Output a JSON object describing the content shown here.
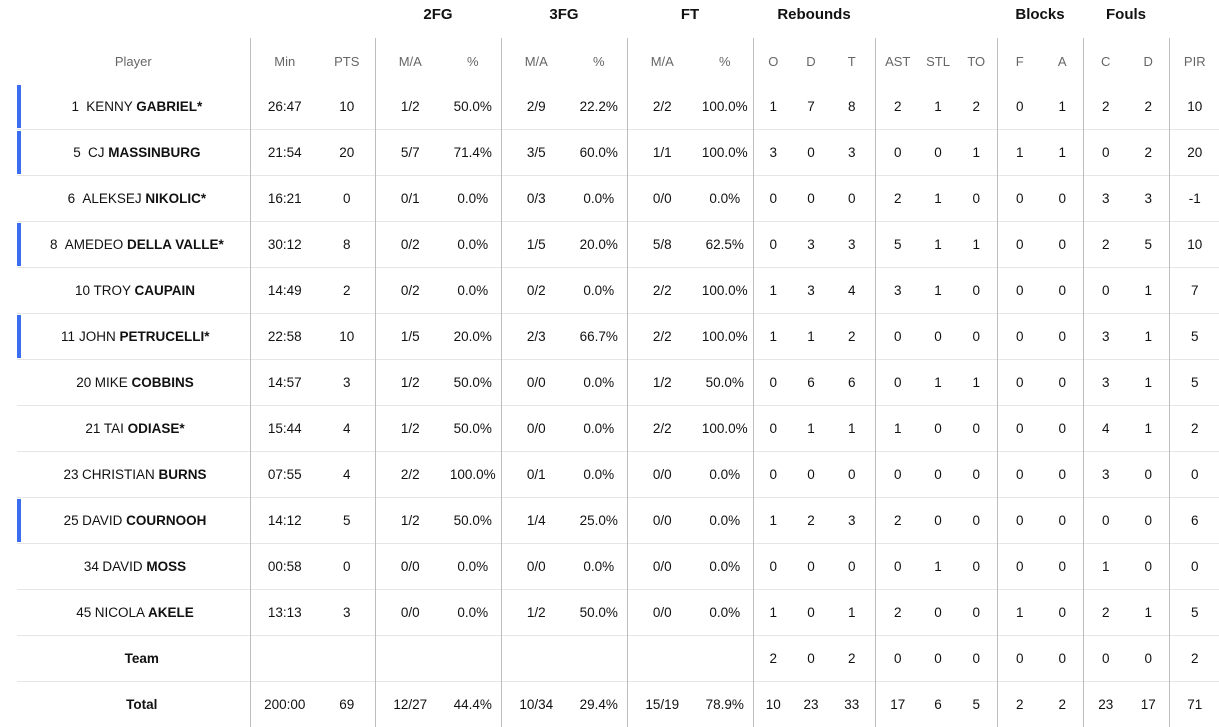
{
  "group_headers": {
    "fg2": "2FG",
    "fg3": "3FG",
    "ft": "FT",
    "rebounds": "Rebounds",
    "blocks": "Blocks",
    "fouls": "Fouls"
  },
  "columns": {
    "player": "Player",
    "min": "Min",
    "pts": "PTS",
    "fg2_ma": "M/A",
    "fg2_pct": "%",
    "fg3_ma": "M/A",
    "fg3_pct": "%",
    "ft_ma": "M/A",
    "ft_pct": "%",
    "reb_o": "O",
    "reb_d": "D",
    "reb_t": "T",
    "ast": "AST",
    "stl": "STL",
    "to": "TO",
    "blk_f": "F",
    "blk_a": "A",
    "foul_c": "C",
    "foul_d": "D",
    "pir": "PIR"
  },
  "colors": {
    "starter_bar": "#3a6df0",
    "divider": "#bdbdbd",
    "row_border": "#e6e6e6"
  },
  "players": [
    {
      "num": "1",
      "first": "KENNY",
      "last": "GABRIEL*",
      "starter": true,
      "min": "26:47",
      "pts": "10",
      "fg2_ma": "1/2",
      "fg2_pct": "50.0%",
      "fg3_ma": "2/9",
      "fg3_pct": "22.2%",
      "ft_ma": "2/2",
      "ft_pct": "100.0%",
      "reb_o": "1",
      "reb_d": "7",
      "reb_t": "8",
      "ast": "2",
      "stl": "1",
      "to": "2",
      "blk_f": "0",
      "blk_a": "1",
      "foul_c": "2",
      "foul_d": "2",
      "pir": "10"
    },
    {
      "num": "5",
      "first": "CJ",
      "last": "MASSINBURG",
      "starter": true,
      "min": "21:54",
      "pts": "20",
      "fg2_ma": "5/7",
      "fg2_pct": "71.4%",
      "fg3_ma": "3/5",
      "fg3_pct": "60.0%",
      "ft_ma": "1/1",
      "ft_pct": "100.0%",
      "reb_o": "3",
      "reb_d": "0",
      "reb_t": "3",
      "ast": "0",
      "stl": "0",
      "to": "1",
      "blk_f": "1",
      "blk_a": "1",
      "foul_c": "0",
      "foul_d": "2",
      "pir": "20"
    },
    {
      "num": "6",
      "first": "ALEKSEJ",
      "last": "NIKOLIC*",
      "starter": false,
      "min": "16:21",
      "pts": "0",
      "fg2_ma": "0/1",
      "fg2_pct": "0.0%",
      "fg3_ma": "0/3",
      "fg3_pct": "0.0%",
      "ft_ma": "0/0",
      "ft_pct": "0.0%",
      "reb_o": "0",
      "reb_d": "0",
      "reb_t": "0",
      "ast": "2",
      "stl": "1",
      "to": "0",
      "blk_f": "0",
      "blk_a": "0",
      "foul_c": "3",
      "foul_d": "3",
      "pir": "-1"
    },
    {
      "num": "8",
      "first": "AMEDEO",
      "last": "DELLA VALLE*",
      "starter": true,
      "min": "30:12",
      "pts": "8",
      "fg2_ma": "0/2",
      "fg2_pct": "0.0%",
      "fg3_ma": "1/5",
      "fg3_pct": "20.0%",
      "ft_ma": "5/8",
      "ft_pct": "62.5%",
      "reb_o": "0",
      "reb_d": "3",
      "reb_t": "3",
      "ast": "5",
      "stl": "1",
      "to": "1",
      "blk_f": "0",
      "blk_a": "0",
      "foul_c": "2",
      "foul_d": "5",
      "pir": "10"
    },
    {
      "num": "10",
      "first": "TROY",
      "last": "CAUPAIN",
      "starter": false,
      "min": "14:49",
      "pts": "2",
      "fg2_ma": "0/2",
      "fg2_pct": "0.0%",
      "fg3_ma": "0/2",
      "fg3_pct": "0.0%",
      "ft_ma": "2/2",
      "ft_pct": "100.0%",
      "reb_o": "1",
      "reb_d": "3",
      "reb_t": "4",
      "ast": "3",
      "stl": "1",
      "to": "0",
      "blk_f": "0",
      "blk_a": "0",
      "foul_c": "0",
      "foul_d": "1",
      "pir": "7"
    },
    {
      "num": "11",
      "first": "JOHN",
      "last": "PETRUCELLI*",
      "starter": true,
      "min": "22:58",
      "pts": "10",
      "fg2_ma": "1/5",
      "fg2_pct": "20.0%",
      "fg3_ma": "2/3",
      "fg3_pct": "66.7%",
      "ft_ma": "2/2",
      "ft_pct": "100.0%",
      "reb_o": "1",
      "reb_d": "1",
      "reb_t": "2",
      "ast": "0",
      "stl": "0",
      "to": "0",
      "blk_f": "0",
      "blk_a": "0",
      "foul_c": "3",
      "foul_d": "1",
      "pir": "5"
    },
    {
      "num": "20",
      "first": "MIKE",
      "last": "COBBINS",
      "starter": false,
      "min": "14:57",
      "pts": "3",
      "fg2_ma": "1/2",
      "fg2_pct": "50.0%",
      "fg3_ma": "0/0",
      "fg3_pct": "0.0%",
      "ft_ma": "1/2",
      "ft_pct": "50.0%",
      "reb_o": "0",
      "reb_d": "6",
      "reb_t": "6",
      "ast": "0",
      "stl": "1",
      "to": "1",
      "blk_f": "0",
      "blk_a": "0",
      "foul_c": "3",
      "foul_d": "1",
      "pir": "5"
    },
    {
      "num": "21",
      "first": "TAI",
      "last": "ODIASE*",
      "starter": false,
      "min": "15:44",
      "pts": "4",
      "fg2_ma": "1/2",
      "fg2_pct": "50.0%",
      "fg3_ma": "0/0",
      "fg3_pct": "0.0%",
      "ft_ma": "2/2",
      "ft_pct": "100.0%",
      "reb_o": "0",
      "reb_d": "1",
      "reb_t": "1",
      "ast": "1",
      "stl": "0",
      "to": "0",
      "blk_f": "0",
      "blk_a": "0",
      "foul_c": "4",
      "foul_d": "1",
      "pir": "2"
    },
    {
      "num": "23",
      "first": "CHRISTIAN",
      "last": "BURNS",
      "starter": false,
      "min": "07:55",
      "pts": "4",
      "fg2_ma": "2/2",
      "fg2_pct": "100.0%",
      "fg3_ma": "0/1",
      "fg3_pct": "0.0%",
      "ft_ma": "0/0",
      "ft_pct": "0.0%",
      "reb_o": "0",
      "reb_d": "0",
      "reb_t": "0",
      "ast": "0",
      "stl": "0",
      "to": "0",
      "blk_f": "0",
      "blk_a": "0",
      "foul_c": "3",
      "foul_d": "0",
      "pir": "0"
    },
    {
      "num": "25",
      "first": "DAVID",
      "last": "COURNOOH",
      "starter": true,
      "min": "14:12",
      "pts": "5",
      "fg2_ma": "1/2",
      "fg2_pct": "50.0%",
      "fg3_ma": "1/4",
      "fg3_pct": "25.0%",
      "ft_ma": "0/0",
      "ft_pct": "0.0%",
      "reb_o": "1",
      "reb_d": "2",
      "reb_t": "3",
      "ast": "2",
      "stl": "0",
      "to": "0",
      "blk_f": "0",
      "blk_a": "0",
      "foul_c": "0",
      "foul_d": "0",
      "pir": "6"
    },
    {
      "num": "34",
      "first": "DAVID",
      "last": "MOSS",
      "starter": false,
      "min": "00:58",
      "pts": "0",
      "fg2_ma": "0/0",
      "fg2_pct": "0.0%",
      "fg3_ma": "0/0",
      "fg3_pct": "0.0%",
      "ft_ma": "0/0",
      "ft_pct": "0.0%",
      "reb_o": "0",
      "reb_d": "0",
      "reb_t": "0",
      "ast": "0",
      "stl": "1",
      "to": "0",
      "blk_f": "0",
      "blk_a": "0",
      "foul_c": "1",
      "foul_d": "0",
      "pir": "0"
    },
    {
      "num": "45",
      "first": "NICOLA",
      "last": "AKELE",
      "starter": false,
      "min": "13:13",
      "pts": "3",
      "fg2_ma": "0/0",
      "fg2_pct": "0.0%",
      "fg3_ma": "1/2",
      "fg3_pct": "50.0%",
      "ft_ma": "0/0",
      "ft_pct": "0.0%",
      "reb_o": "1",
      "reb_d": "0",
      "reb_t": "1",
      "ast": "2",
      "stl": "0",
      "to": "0",
      "blk_f": "1",
      "blk_a": "0",
      "foul_c": "2",
      "foul_d": "1",
      "pir": "5"
    }
  ],
  "team": {
    "label": "Team",
    "reb_o": "2",
    "reb_d": "0",
    "reb_t": "2",
    "ast": "0",
    "stl": "0",
    "to": "0",
    "blk_f": "0",
    "blk_a": "0",
    "foul_c": "0",
    "foul_d": "0",
    "pir": "2"
  },
  "total": {
    "label": "Total",
    "min": "200:00",
    "pts": "69",
    "fg2_ma": "12/27",
    "fg2_pct": "44.4%",
    "fg3_ma": "10/34",
    "fg3_pct": "29.4%",
    "ft_ma": "15/19",
    "ft_pct": "78.9%",
    "reb_o": "10",
    "reb_d": "23",
    "reb_t": "33",
    "ast": "17",
    "stl": "6",
    "to": "5",
    "blk_f": "2",
    "blk_a": "2",
    "foul_c": "23",
    "foul_d": "17",
    "pir": "71"
  }
}
